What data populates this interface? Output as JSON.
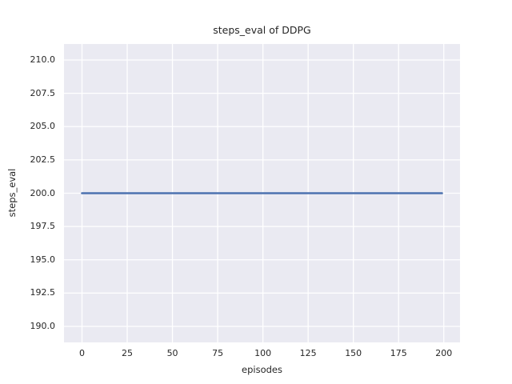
{
  "chart_data": {
    "type": "line",
    "title": "steps_eval of DDPG",
    "xlabel": "episodes",
    "ylabel": "steps_eval",
    "series": [
      {
        "name": "steps_eval",
        "color": "#4c72b0",
        "points": [
          [
            0,
            200.0
          ],
          [
            199,
            200.0
          ]
        ],
        "description": "constant value 200 for all episodes 0 through 199"
      }
    ],
    "x_ticks": [
      0,
      25,
      50,
      75,
      100,
      125,
      150,
      175,
      200
    ],
    "x_tick_labels": [
      "0",
      "25",
      "50",
      "75",
      "100",
      "125",
      "150",
      "175",
      "200"
    ],
    "y_ticks": [
      190.0,
      192.5,
      195.0,
      197.5,
      200.0,
      202.5,
      205.0,
      207.5,
      210.0
    ],
    "y_tick_labels": [
      "190.0",
      "192.5",
      "195.0",
      "197.5",
      "200.0",
      "202.5",
      "205.0",
      "207.5",
      "210.0"
    ],
    "xlim": [
      -9.95,
      208.95
    ],
    "ylim": [
      188.8,
      211.2
    ],
    "grid": true,
    "legend": null,
    "style": {
      "figure_background": "#ffffff",
      "axes_background": "#eaeaf2",
      "grid_color": "#ffffff",
      "text_color": "#262626"
    }
  }
}
